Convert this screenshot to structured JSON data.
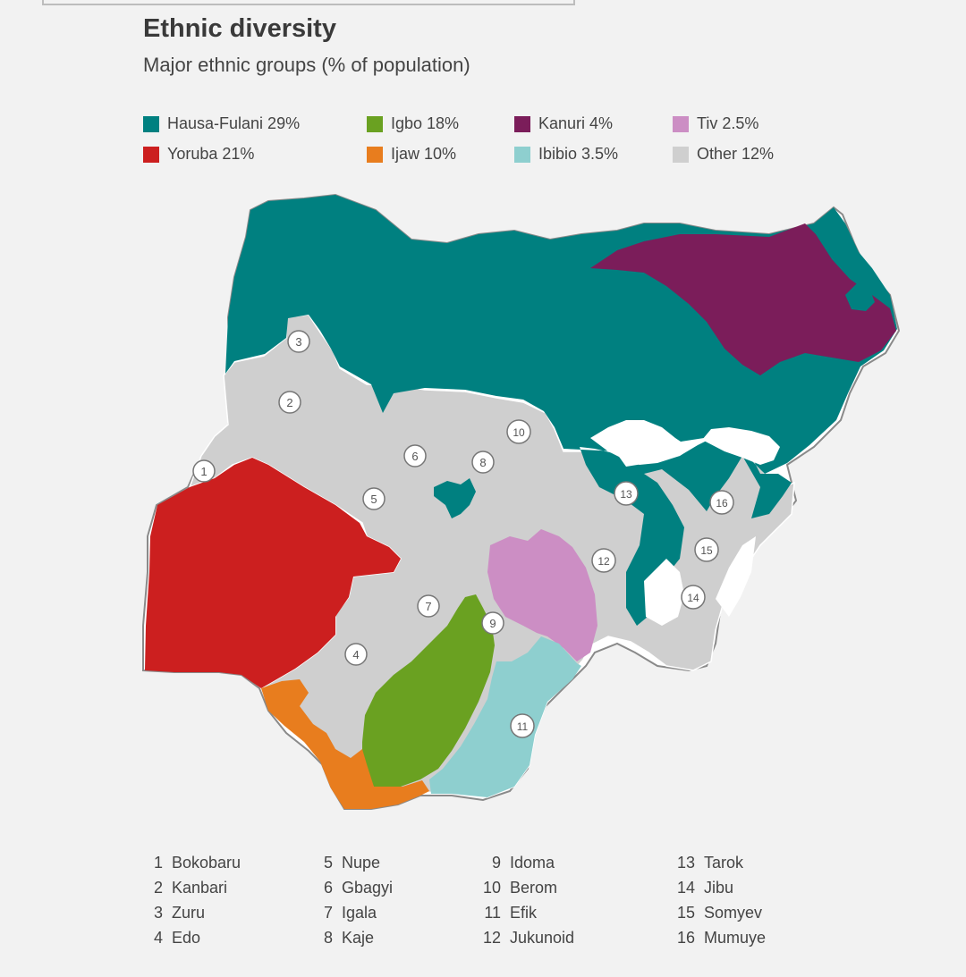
{
  "title": "Ethnic diversity",
  "subtitle": "Major ethnic groups (% of population)",
  "colors": {
    "hausa_fulani": "#008080",
    "yoruba": "#cc1f1f",
    "igbo": "#6aa121",
    "ijaw": "#e87d1e",
    "kanuri": "#7b1d5a",
    "ibibio": "#8ecfcf",
    "tiv": "#cc8ec4",
    "other": "#cfcfcf"
  },
  "legend": [
    {
      "label": "Hausa-Fulani 29%",
      "color": "#008080"
    },
    {
      "label": "Yoruba 21%",
      "color": "#cc1f1f"
    },
    {
      "label": "Igbo 18%",
      "color": "#6aa121"
    },
    {
      "label": "Ijaw 10%",
      "color": "#e87d1e"
    },
    {
      "label": "Kanuri 4%",
      "color": "#7b1d5a"
    },
    {
      "label": "Ibibio 3.5%",
      "color": "#8ecfcf"
    },
    {
      "label": "Tiv 2.5%",
      "color": "#cc8ec4"
    },
    {
      "label": "Other 12%",
      "color": "#cfcfcf"
    }
  ],
  "markers": [
    "1",
    "2",
    "3",
    "4",
    "5",
    "6",
    "7",
    "8",
    "9",
    "10",
    "11",
    "12",
    "13",
    "14",
    "15",
    "16"
  ],
  "key": [
    {
      "num": "1",
      "name": "Bokobaru"
    },
    {
      "num": "2",
      "name": "Kanbari"
    },
    {
      "num": "3",
      "name": "Zuru"
    },
    {
      "num": "4",
      "name": "Edo"
    },
    {
      "num": "5",
      "name": "Nupe"
    },
    {
      "num": "6",
      "name": "Gbagyi"
    },
    {
      "num": "7",
      "name": "Igala"
    },
    {
      "num": "8",
      "name": "Kaje"
    },
    {
      "num": "9",
      "name": "Idoma"
    },
    {
      "num": "10",
      "name": "Berom"
    },
    {
      "num": "11",
      "name": "Efik"
    },
    {
      "num": "12",
      "name": "Jukunoid"
    },
    {
      "num": "13",
      "name": "Tarok"
    },
    {
      "num": "14",
      "name": "Jibu"
    },
    {
      "num": "15",
      "name": "Somyev"
    },
    {
      "num": "16",
      "name": "Mumuye"
    }
  ]
}
